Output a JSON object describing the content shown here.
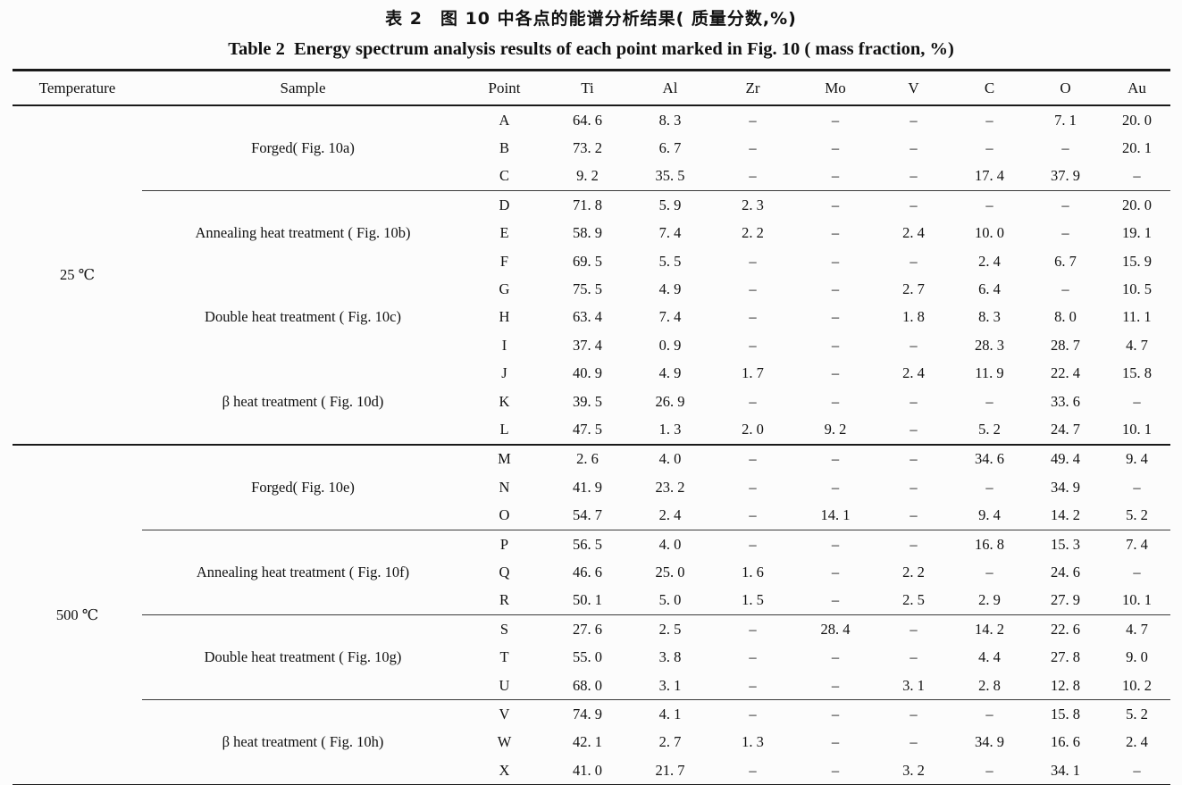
{
  "titles": {
    "zh": "表 2　图 10 中各点的能谱分析结果( 质量分数,%)",
    "en": "Table 2  Energy spectrum analysis results of each point marked in Fig. 10 ( mass fraction, %)"
  },
  "table": {
    "columns": [
      "Temperature",
      "Sample",
      "Point",
      "Ti",
      "Al",
      "Zr",
      "Mo",
      "V",
      "C",
      "O",
      "Au"
    ],
    "not_detected_symbol": "–",
    "temperature_groups": [
      {
        "temperature": "25 ℃",
        "sample_groups": [
          {
            "sample": "Forged( Fig. 10a)",
            "separator_before": false,
            "rows": [
              {
                "point": "A",
                "values": [
                  "64. 6",
                  "8. 3",
                  "–",
                  "–",
                  "–",
                  "–",
                  "7. 1",
                  "20. 0"
                ]
              },
              {
                "point": "B",
                "values": [
                  "73. 2",
                  "6. 7",
                  "–",
                  "–",
                  "–",
                  "–",
                  "–",
                  "20. 1"
                ]
              },
              {
                "point": "C",
                "values": [
                  "9. 2",
                  "35. 5",
                  "–",
                  "–",
                  "–",
                  "17. 4",
                  "37. 9",
                  "–"
                ]
              }
            ]
          },
          {
            "sample": "Annealing heat treatment ( Fig. 10b)",
            "separator_before": true,
            "rows": [
              {
                "point": "D",
                "values": [
                  "71. 8",
                  "5. 9",
                  "2. 3",
                  "–",
                  "–",
                  "–",
                  "–",
                  "20. 0"
                ]
              },
              {
                "point": "E",
                "values": [
                  "58. 9",
                  "7. 4",
                  "2. 2",
                  "–",
                  "2. 4",
                  "10. 0",
                  "–",
                  "19. 1"
                ]
              },
              {
                "point": "F",
                "values": [
                  "69. 5",
                  "5. 5",
                  "–",
                  "–",
                  "–",
                  "2. 4",
                  "6. 7",
                  "15. 9"
                ]
              }
            ]
          },
          {
            "sample": "Double heat treatment ( Fig. 10c)",
            "separator_before": false,
            "rows": [
              {
                "point": "G",
                "values": [
                  "75. 5",
                  "4. 9",
                  "–",
                  "–",
                  "2. 7",
                  "6. 4",
                  "–",
                  "10. 5"
                ]
              },
              {
                "point": "H",
                "values": [
                  "63. 4",
                  "7. 4",
                  "–",
                  "–",
                  "1. 8",
                  "8. 3",
                  "8. 0",
                  "11. 1"
                ]
              },
              {
                "point": "I",
                "values": [
                  "37. 4",
                  "0. 9",
                  "–",
                  "–",
                  "–",
                  "28. 3",
                  "28. 7",
                  "4. 7"
                ]
              }
            ]
          },
          {
            "sample": "β heat treatment ( Fig. 10d)",
            "separator_before": false,
            "rows": [
              {
                "point": "J",
                "values": [
                  "40. 9",
                  "4. 9",
                  "1. 7",
                  "–",
                  "2. 4",
                  "11. 9",
                  "22. 4",
                  "15. 8"
                ]
              },
              {
                "point": "K",
                "values": [
                  "39. 5",
                  "26. 9",
                  "–",
                  "–",
                  "–",
                  "–",
                  "33. 6",
                  "–"
                ]
              },
              {
                "point": "L",
                "values": [
                  "47. 5",
                  "1. 3",
                  "2. 0",
                  "9. 2",
                  "–",
                  "5. 2",
                  "24. 7",
                  "10. 1"
                ]
              }
            ]
          }
        ]
      },
      {
        "temperature": "500 ℃",
        "sample_groups": [
          {
            "sample": "Forged( Fig. 10e)",
            "separator_before": false,
            "rows": [
              {
                "point": "M",
                "values": [
                  "2. 6",
                  "4. 0",
                  "–",
                  "–",
                  "–",
                  "34. 6",
                  "49. 4",
                  "9. 4"
                ]
              },
              {
                "point": "N",
                "values": [
                  "41. 9",
                  "23. 2",
                  "–",
                  "–",
                  "–",
                  "–",
                  "34. 9",
                  "–"
                ]
              },
              {
                "point": "O",
                "values": [
                  "54. 7",
                  "2. 4",
                  "–",
                  "14. 1",
                  "–",
                  "9. 4",
                  "14. 2",
                  "5. 2"
                ]
              }
            ]
          },
          {
            "sample": "Annealing heat treatment ( Fig. 10f)",
            "separator_before": true,
            "rows": [
              {
                "point": "P",
                "values": [
                  "56. 5",
                  "4. 0",
                  "–",
                  "–",
                  "–",
                  "16. 8",
                  "15. 3",
                  "7. 4"
                ]
              },
              {
                "point": "Q",
                "values": [
                  "46. 6",
                  "25. 0",
                  "1. 6",
                  "–",
                  "2. 2",
                  "–",
                  "24. 6",
                  "–"
                ]
              },
              {
                "point": "R",
                "values": [
                  "50. 1",
                  "5. 0",
                  "1. 5",
                  "–",
                  "2. 5",
                  "2. 9",
                  "27. 9",
                  "10. 1"
                ]
              }
            ]
          },
          {
            "sample": "Double heat treatment ( Fig. 10g)",
            "separator_before": true,
            "rows": [
              {
                "point": "S",
                "values": [
                  "27. 6",
                  "2. 5",
                  "–",
                  "28. 4",
                  "–",
                  "14. 2",
                  "22. 6",
                  "4. 7"
                ]
              },
              {
                "point": "T",
                "values": [
                  "55. 0",
                  "3. 8",
                  "–",
                  "–",
                  "–",
                  "4. 4",
                  "27. 8",
                  "9. 0"
                ]
              },
              {
                "point": "U",
                "values": [
                  "68. 0",
                  "3. 1",
                  "–",
                  "–",
                  "3. 1",
                  "2. 8",
                  "12. 8",
                  "10. 2"
                ]
              }
            ]
          },
          {
            "sample": "β heat treatment ( Fig. 10h)",
            "separator_before": true,
            "rows": [
              {
                "point": "V",
                "values": [
                  "74. 9",
                  "4. 1",
                  "–",
                  "–",
                  "–",
                  "–",
                  "15. 8",
                  "5. 2"
                ]
              },
              {
                "point": "W",
                "values": [
                  "42. 1",
                  "2. 7",
                  "1. 3",
                  "–",
                  "–",
                  "34. 9",
                  "16. 6",
                  "2. 4"
                ]
              },
              {
                "point": "X",
                "values": [
                  "41. 0",
                  "21. 7",
                  "–",
                  "–",
                  "3. 2",
                  "–",
                  "34. 1",
                  "–"
                ]
              }
            ]
          }
        ]
      }
    ]
  }
}
